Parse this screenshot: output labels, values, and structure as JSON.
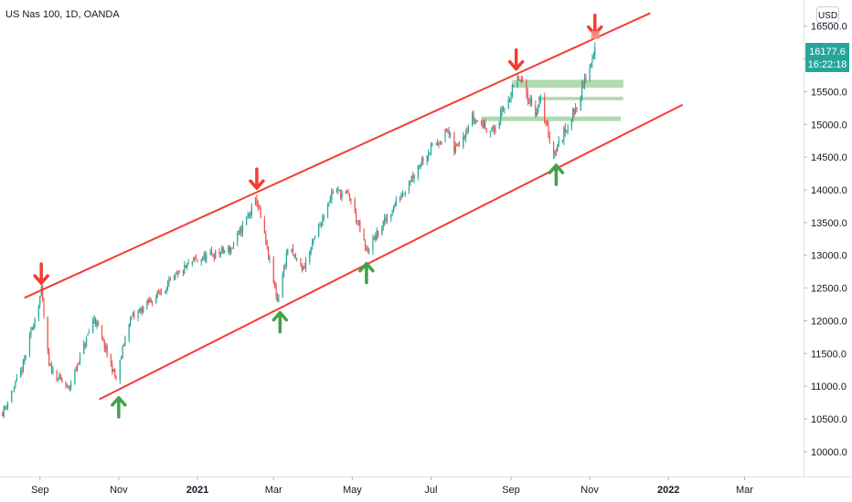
{
  "header": {
    "symbol_title": "US Nas 100, 1D, OANDA",
    "currency": "USD"
  },
  "price_badge": {
    "price": "16177.6",
    "countdown": "16:22:18",
    "color": "#26a69a"
  },
  "colors": {
    "up": "#26a69a",
    "down": "#ef5350",
    "channel": "#f23d33",
    "zone": "#4caf50",
    "arrow_up": "#43a047",
    "arrow_down": "#f23d33"
  },
  "chart_data": {
    "type": "candlestick",
    "title": "US Nas 100, 1D, OANDA",
    "x_axis": {
      "range": [
        "2020-08-01",
        "2022-04-15"
      ],
      "ticks": [
        {
          "label": "Sep",
          "date": "2020-09-01",
          "bold": false
        },
        {
          "label": "Nov",
          "date": "2020-11-01",
          "bold": false
        },
        {
          "label": "2021",
          "date": "2021-01-01",
          "bold": true
        },
        {
          "label": "Mar",
          "date": "2021-03-01",
          "bold": false
        },
        {
          "label": "May",
          "date": "2021-05-01",
          "bold": false
        },
        {
          "label": "Jul",
          "date": "2021-07-01",
          "bold": false
        },
        {
          "label": "Sep",
          "date": "2021-09-01",
          "bold": false
        },
        {
          "label": "Nov",
          "date": "2021-11-01",
          "bold": false
        },
        {
          "label": "2022",
          "date": "2022-01-01",
          "bold": true
        },
        {
          "label": "Mar",
          "date": "2022-03-01",
          "bold": false
        }
      ]
    },
    "y_axis": {
      "range": [
        9650,
        16900
      ],
      "ticks": [
        "16500.0",
        "16000.0",
        "15500.0",
        "15000.0",
        "14500.0",
        "14000.0",
        "13500.0",
        "13000.0",
        "12500.0",
        "12000.0",
        "11500.0",
        "11000.0",
        "10500.0",
        "10000.0"
      ]
    },
    "price_path": [
      {
        "date": "2020-08-03",
        "value": 10600
      },
      {
        "date": "2020-08-18",
        "value": 11250
      },
      {
        "date": "2020-09-02",
        "value": 12450
      },
      {
        "date": "2020-09-08",
        "value": 11300
      },
      {
        "date": "2020-09-23",
        "value": 10950
      },
      {
        "date": "2020-10-13",
        "value": 12050
      },
      {
        "date": "2020-10-30",
        "value": 11100
      },
      {
        "date": "2020-11-09",
        "value": 12000
      },
      {
        "date": "2020-12-01",
        "value": 12400
      },
      {
        "date": "2020-12-28",
        "value": 12900
      },
      {
        "date": "2021-01-27",
        "value": 13100
      },
      {
        "date": "2021-02-16",
        "value": 13850
      },
      {
        "date": "2021-03-04",
        "value": 12300
      },
      {
        "date": "2021-03-12",
        "value": 13100
      },
      {
        "date": "2021-03-24",
        "value": 12800
      },
      {
        "date": "2021-04-16",
        "value": 14000
      },
      {
        "date": "2021-04-29",
        "value": 13900
      },
      {
        "date": "2021-05-12",
        "value": 13050
      },
      {
        "date": "2021-06-01",
        "value": 13700
      },
      {
        "date": "2021-06-25",
        "value": 14500
      },
      {
        "date": "2021-07-14",
        "value": 14900
      },
      {
        "date": "2021-07-19",
        "value": 14600
      },
      {
        "date": "2021-08-02",
        "value": 15100
      },
      {
        "date": "2021-08-19",
        "value": 14900
      },
      {
        "date": "2021-08-31",
        "value": 15450
      },
      {
        "date": "2021-09-07",
        "value": 15700
      },
      {
        "date": "2021-09-20",
        "value": 15200
      },
      {
        "date": "2021-09-24",
        "value": 15350
      },
      {
        "date": "2021-10-04",
        "value": 14550
      },
      {
        "date": "2021-10-08",
        "value": 14700
      },
      {
        "date": "2021-10-22",
        "value": 15300
      },
      {
        "date": "2021-11-01",
        "value": 15900
      },
      {
        "date": "2021-11-05",
        "value": 16177.6
      }
    ],
    "channel_lines": [
      {
        "name": "upper",
        "from": {
          "date": "2020-08-20",
          "value": 12350
        },
        "to": {
          "date": "2021-12-18",
          "value": 16700
        }
      },
      {
        "name": "lower",
        "from": {
          "date": "2020-10-17",
          "value": 10800
        },
        "to": {
          "date": "2022-01-12",
          "value": 15300
        }
      }
    ],
    "zones": [
      {
        "from": "2021-09-02",
        "to": "2021-11-27",
        "low": 15560,
        "high": 15680
      },
      {
        "from": "2021-09-22",
        "to": "2021-11-27",
        "low": 15370,
        "high": 15420
      },
      {
        "from": "2021-08-09",
        "to": "2021-11-25",
        "low": 15050,
        "high": 15120
      }
    ],
    "annotations": [
      {
        "type": "arrow-down",
        "date": "2020-09-02",
        "value": 12450
      },
      {
        "type": "arrow-down",
        "date": "2021-02-16",
        "value": 13900
      },
      {
        "type": "arrow-down",
        "date": "2021-09-05",
        "value": 15720
      },
      {
        "type": "arrow-down",
        "date": "2021-11-05",
        "value": 16250
      },
      {
        "type": "arrow-up",
        "date": "2020-11-01",
        "value": 10950
      },
      {
        "type": "arrow-up",
        "date": "2021-03-06",
        "value": 12250
      },
      {
        "type": "arrow-up",
        "date": "2021-05-12",
        "value": 13000
      },
      {
        "type": "arrow-up",
        "date": "2021-10-06",
        "value": 14500
      }
    ],
    "grid": false,
    "legend": "none"
  }
}
